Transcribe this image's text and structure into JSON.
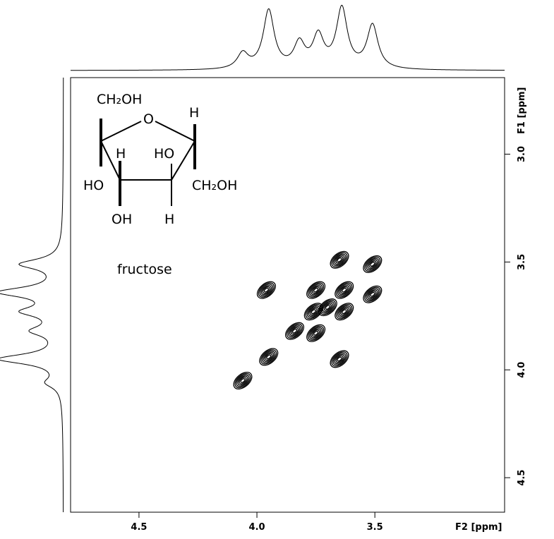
{
  "chart_data": {
    "type": "contour",
    "x_label": "F2 [ppm]",
    "y_label": "F1 [ppm]",
    "xlim": [
      4.79,
      2.95
    ],
    "ylim": [
      2.645,
      4.66
    ],
    "xticks": [
      4.5,
      {
        "value": 4,
        "label": "4.0"
      },
      3.5
    ],
    "yticks": [
      {
        "value": 3,
        "label": "3.0"
      },
      3.5,
      {
        "value": 4,
        "label": "4.0"
      },
      4.5
    ],
    "peaks": {
      "x": [
        3.96,
        3.65,
        3.51,
        3.51,
        3.75,
        3.63,
        3.84,
        3.75,
        3.95,
        3.65,
        4.06,
        3.63,
        3.76,
        3.7
      ],
      "y": [
        3.63,
        3.49,
        3.51,
        3.65,
        3.63,
        3.63,
        3.82,
        3.83,
        3.94,
        3.95,
        4.05,
        3.73,
        3.73,
        3.71
      ]
    },
    "top_projection": {
      "positions": [
        4.06,
        3.95,
        3.82,
        3.74,
        3.64,
        3.51
      ],
      "heights": [
        22,
        83,
        35,
        45,
        85,
        62
      ]
    },
    "left_projection": {
      "positions": [
        3.51,
        3.64,
        3.73,
        3.82,
        3.95,
        4.06
      ],
      "heights": [
        58,
        85,
        50,
        38,
        88,
        20
      ]
    },
    "annotation": "fructose",
    "structure": {
      "labels": [
        "CH₂OH",
        "O",
        "H",
        "H",
        "HO",
        "HO",
        "CH₂OH",
        "OH",
        "H"
      ]
    }
  }
}
